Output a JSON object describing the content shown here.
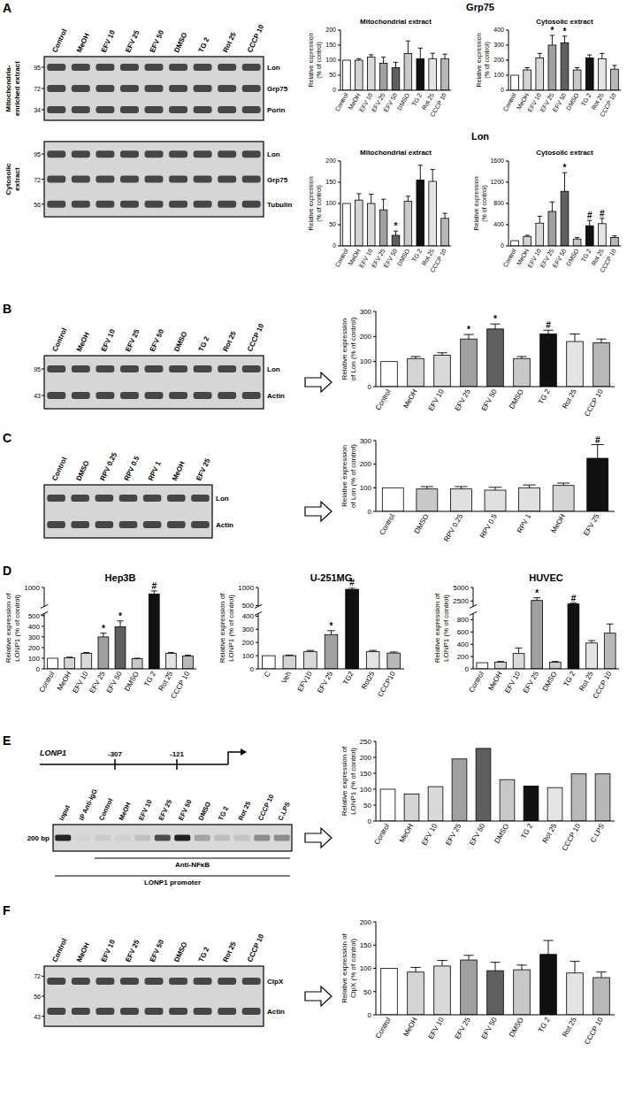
{
  "chart_data": [
    {
      "type": "bar",
      "title": "Mitochondrial extract",
      "ylabel": [
        "Relative expression",
        "(% of control)"
      ],
      "categories": [
        "Control",
        "MeOH",
        "EFV 10",
        "EFV 25",
        "EFV 50",
        "DMSO",
        "TG 2",
        "Rot 25",
        "CCCP 10"
      ],
      "values": [
        100,
        100,
        110,
        90,
        75,
        122,
        105,
        105,
        105
      ],
      "errors": [
        0,
        5,
        8,
        20,
        18,
        42,
        35,
        18,
        15
      ],
      "annotations": [
        null,
        null,
        null,
        null,
        null,
        null,
        null,
        null,
        null
      ],
      "colors": [
        "#ffffff",
        "#d4d4d4",
        "#d9d9d9",
        "#a0a0a0",
        "#5f5f5f",
        "#c8c8c8",
        "#111111",
        "#e4e4e4",
        "#b8b8b8"
      ],
      "ylim": [
        0,
        200
      ],
      "yticks": [
        0,
        50,
        100,
        150,
        200
      ]
    },
    {
      "type": "bar",
      "title": "Cytosolic extract",
      "ylabel": [
        "Relative expression",
        "(% of control)"
      ],
      "categories": [
        "Control",
        "MeOH",
        "EFV 10",
        "EFV 25",
        "EFV 50",
        "DMSO",
        "TG 2",
        "Rot 25",
        "CCCP 10"
      ],
      "values": [
        100,
        135,
        215,
        300,
        315,
        135,
        215,
        210,
        140
      ],
      "errors": [
        0,
        15,
        30,
        65,
        45,
        15,
        20,
        35,
        25
      ],
      "annotations": [
        null,
        null,
        null,
        "*",
        "*",
        null,
        null,
        null,
        null
      ],
      "colors": [
        "#ffffff",
        "#d4d4d4",
        "#d9d9d9",
        "#a0a0a0",
        "#5f5f5f",
        "#c8c8c8",
        "#111111",
        "#e4e4e4",
        "#b8b8b8"
      ],
      "ylim": [
        0,
        400
      ],
      "yticks": [
        0,
        100,
        200,
        300,
        400
      ]
    },
    {
      "type": "bar",
      "title": "Mitochondrial extract",
      "ylabel": [
        "Relative expression",
        "(% of control)"
      ],
      "categories": [
        "Control",
        "MeOH",
        "EFV 10",
        "EFV 25",
        "EFV 50",
        "DMSO",
        "TG 2",
        "Rot 25",
        "CCCP 10"
      ],
      "values": [
        100,
        108,
        100,
        85,
        25,
        105,
        155,
        152,
        65
      ],
      "errors": [
        0,
        15,
        22,
        25,
        10,
        12,
        35,
        28,
        12
      ],
      "annotations": [
        null,
        null,
        null,
        null,
        "*",
        null,
        null,
        null,
        null
      ],
      "colors": [
        "#ffffff",
        "#d4d4d4",
        "#d9d9d9",
        "#a0a0a0",
        "#5f5f5f",
        "#c8c8c8",
        "#111111",
        "#e4e4e4",
        "#b8b8b8"
      ],
      "ylim": [
        0,
        200
      ],
      "yticks": [
        0,
        50,
        100,
        150,
        200
      ]
    },
    {
      "type": "bar",
      "title": "Cytosolic extract",
      "ylabel": [
        "Relative expression",
        "(% of control)"
      ],
      "categories": [
        "Control",
        "MeOH",
        "EFV 10",
        "EFV 25",
        "EFV 50",
        "DMSO",
        "TG 2",
        "Rot 25",
        "CCCP 10"
      ],
      "values": [
        100,
        180,
        430,
        650,
        1030,
        130,
        380,
        420,
        160
      ],
      "errors": [
        0,
        20,
        130,
        180,
        350,
        30,
        100,
        100,
        30
      ],
      "annotations": [
        null,
        null,
        null,
        null,
        "*",
        null,
        "#",
        "#",
        null
      ],
      "colors": [
        "#ffffff",
        "#d4d4d4",
        "#d9d9d9",
        "#a0a0a0",
        "#5f5f5f",
        "#c8c8c8",
        "#111111",
        "#e4e4e4",
        "#b8b8b8"
      ],
      "ylim": [
        0,
        1600
      ],
      "yticks": [
        0,
        400,
        800,
        1200,
        1600
      ]
    },
    {
      "type": "bar",
      "ylabel": [
        "Relative expression",
        "of Lon (% of control)"
      ],
      "categories": [
        "Control",
        "MeOH",
        "EFV 10",
        "EFV 25",
        "EFV 50",
        "DMSO",
        "TG 2",
        "Rot 25",
        "CCCP 10"
      ],
      "values": [
        100,
        112,
        125,
        190,
        230,
        112,
        210,
        180,
        175
      ],
      "errors": [
        0,
        8,
        10,
        18,
        20,
        8,
        15,
        30,
        15
      ],
      "annotations": [
        null,
        null,
        null,
        "*",
        "*",
        null,
        "#",
        null,
        null
      ],
      "colors": [
        "#ffffff",
        "#d4d4d4",
        "#d9d9d9",
        "#a0a0a0",
        "#5f5f5f",
        "#c8c8c8",
        "#111111",
        "#e4e4e4",
        "#b8b8b8"
      ],
      "ylim": [
        0,
        300
      ],
      "yticks": [
        0,
        100,
        200,
        300
      ]
    },
    {
      "type": "bar",
      "ylabel": [
        "Relative expression",
        "of Lon (% of control)"
      ],
      "categories": [
        "Control",
        "DMSO",
        "RPV 0.25",
        "RPV 0.5",
        "RPV 1",
        "MeOH",
        "EFV 25"
      ],
      "values": [
        100,
        95,
        95,
        90,
        100,
        110,
        225
      ],
      "errors": [
        0,
        10,
        10,
        12,
        12,
        10,
        58
      ],
      "annotations": [
        null,
        null,
        null,
        null,
        null,
        null,
        "#"
      ],
      "colors": [
        "#ffffff",
        "#c8c8c8",
        "#e0e0e0",
        "#e0e0e0",
        "#e0e0e0",
        "#d4d4d4",
        "#111111"
      ],
      "ylim": [
        0,
        300
      ],
      "yticks": [
        0,
        100,
        200,
        300
      ]
    },
    {
      "type": "bar",
      "title": "Hep3B",
      "ylabel": [
        "Relative expression of",
        "LONP1 (% of control)"
      ],
      "categories": [
        "Control",
        "MeOH",
        "EFV 10",
        "EFV 25",
        "EFV 50",
        "DMSO",
        "TG 2",
        "Rot 25",
        "CCCP 10"
      ],
      "values": [
        100,
        105,
        145,
        300,
        395,
        95,
        850,
        145,
        120
      ],
      "errors": [
        0,
        5,
        8,
        35,
        55,
        5,
        70,
        8,
        8
      ],
      "annotations": [
        null,
        null,
        null,
        "*",
        "*",
        null,
        "#",
        null,
        null
      ],
      "colors": [
        "#ffffff",
        "#d4d4d4",
        "#d9d9d9",
        "#a0a0a0",
        "#5f5f5f",
        "#c8c8c8",
        "#111111",
        "#e4e4e4",
        "#b8b8b8"
      ],
      "ylim": [
        0,
        1000
      ],
      "ybreak": [
        520,
        560
      ],
      "yticks": [
        0,
        100,
        200,
        300,
        400,
        500,
        1000
      ]
    },
    {
      "type": "bar",
      "title": "U-251MG",
      "ylabel": [
        "Relative expression of",
        "LONP1 (% of control)"
      ],
      "categories": [
        "C",
        "Veh",
        "EFV10",
        "EFV 25",
        "TG2",
        "Rot25",
        "CCCP10"
      ],
      "values": [
        100,
        100,
        130,
        260,
        950,
        130,
        120
      ],
      "errors": [
        0,
        5,
        10,
        30,
        50,
        10,
        8
      ],
      "annotations": [
        null,
        null,
        null,
        "*",
        "#",
        null,
        null
      ],
      "colors": [
        "#ffffff",
        "#d4d4d4",
        "#d9d9d9",
        "#a0a0a0",
        "#111111",
        "#e4e4e4",
        "#b8b8b8"
      ],
      "ylim": [
        0,
        1000
      ],
      "ybreak": [
        420,
        480
      ],
      "yticks": [
        0,
        100,
        200,
        300,
        400,
        500,
        1000
      ]
    },
    {
      "type": "bar",
      "title": "HUVEC",
      "ylabel": [
        "Relative expression of",
        "LONP1 (% of control)"
      ],
      "categories": [
        "Control",
        "MeOH",
        "EFV 10",
        "EFV 25",
        "DMSO",
        "TG 2",
        "Rot 25",
        "CCCP 10"
      ],
      "values": [
        100,
        110,
        250,
        2600,
        110,
        1950,
        420,
        580
      ],
      "errors": [
        0,
        10,
        90,
        500,
        10,
        150,
        40,
        150
      ],
      "annotations": [
        null,
        null,
        null,
        "*",
        null,
        "#",
        null,
        null
      ],
      "colors": [
        "#ffffff",
        "#d4d4d4",
        "#d9d9d9",
        "#a0a0a0",
        "#c8c8c8",
        "#111111",
        "#e4e4e4",
        "#b8b8b8"
      ],
      "ylim": [
        0,
        5000
      ],
      "ybreak": [
        900,
        1500
      ],
      "yticks": [
        0,
        200,
        400,
        600,
        800,
        2500,
        5000
      ]
    },
    {
      "type": "bar",
      "ylabel": [
        "Relative expression of",
        "LONP1 (% of control)"
      ],
      "categories": [
        "Control",
        "MeOH",
        "EFV 10",
        "EFV 25",
        "EFV 50",
        "DMSO",
        "TG 2",
        "Rot 25",
        "CCCP 10",
        "C.LPS"
      ],
      "values": [
        100,
        85,
        108,
        195,
        228,
        130,
        110,
        105,
        148,
        148
      ],
      "colors": [
        "#ffffff",
        "#d4d4d4",
        "#d9d9d9",
        "#a0a0a0",
        "#5f5f5f",
        "#c8c8c8",
        "#111111",
        "#e4e4e4",
        "#b8b8b8",
        "#b8b8b8"
      ],
      "ylim": [
        0,
        250
      ],
      "yticks": [
        0,
        50,
        100,
        150,
        200,
        250
      ]
    },
    {
      "type": "bar",
      "ylabel": [
        "Relative expression of",
        "ClpX (% of control)"
      ],
      "categories": [
        "Control",
        "MeOH",
        "EFV 10",
        "EFV 25",
        "EFV 50",
        "DMSO",
        "TG 2",
        "Rot 25",
        "CCCP 10"
      ],
      "values": [
        100,
        92,
        105,
        118,
        95,
        97,
        130,
        90,
        80
      ],
      "errors": [
        0,
        10,
        12,
        10,
        18,
        10,
        30,
        25,
        12
      ],
      "annotations": [
        null,
        null,
        null,
        null,
        null,
        null,
        null,
        null,
        null
      ],
      "colors": [
        "#ffffff",
        "#d4d4d4",
        "#d9d9d9",
        "#a0a0a0",
        "#5f5f5f",
        "#c8c8c8",
        "#111111",
        "#e4e4e4",
        "#b8b8b8"
      ],
      "ylim": [
        0,
        200
      ],
      "yticks": [
        0,
        50,
        100,
        150,
        200
      ]
    }
  ],
  "figure": {
    "panel_labels": [
      "A",
      "B",
      "C",
      "D",
      "E",
      "F"
    ],
    "headings": [
      "Grp75",
      "Lon"
    ],
    "blots": [
      {
        "lanes": [
          "Control",
          "MeOH",
          "EFV 10",
          "EFV 25",
          "EFV 50",
          "DMSO",
          "TG 2",
          "Rot 25",
          "CCCP 10"
        ],
        "side_label": [
          "Mitochondria-",
          "enriched extract"
        ],
        "rows": [
          "Lon",
          "Grp75",
          "Porin"
        ],
        "mw": [
          95,
          72,
          34
        ]
      },
      {
        "side_label": [
          "Cytosolic",
          "extract"
        ],
        "rows": [
          "Lon",
          "Grp75",
          "Tubulin"
        ],
        "mw": [
          95,
          72,
          56
        ]
      },
      {
        "lanes": [
          "Control",
          "MeOH",
          "EFV 10",
          "EFV 25",
          "EFV 50",
          "DMSO",
          "TG 2",
          "Rot 25",
          "CCCP 10"
        ],
        "rows": [
          "Lon",
          "Actin"
        ],
        "mw": [
          95,
          43
        ]
      },
      {
        "lanes": [
          "Control",
          "DMSO",
          "RPV 0.25",
          "RPV 0.5",
          "RPV 1",
          "MeOH",
          "EFV 25"
        ],
        "rows": [
          "Lon",
          "Actin"
        ]
      },
      {
        "lanes": [
          "Control",
          "MeOH",
          "EFV 10",
          "EFV 25",
          "EFV 50",
          "DMSO",
          "TG 2",
          "Rot 25",
          "CCCP 10"
        ],
        "rows": [
          "ClpX",
          "Actin"
        ],
        "mw": [
          72,
          56,
          43
        ]
      }
    ],
    "promoter": {
      "gene": "LONP1",
      "sites": [
        "-307",
        "-121"
      ]
    },
    "gel": {
      "lanes": [
        "Input",
        "IP Anti-IgG",
        "Control",
        "MeOH",
        "EFV 10",
        "EFV 25",
        "EFV 50",
        "DMSO",
        "TG 2",
        "Rot 25",
        "CCCP 10",
        "C.LPS"
      ],
      "size": "200 bp",
      "brackets": [
        "Anti-NFκB",
        "LONP1 promoter"
      ]
    }
  }
}
